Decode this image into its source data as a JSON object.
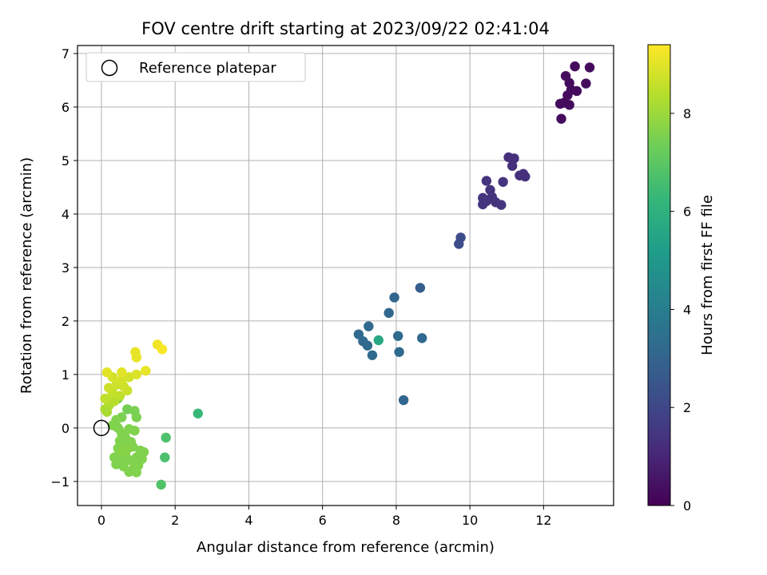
{
  "chart_data": {
    "type": "scatter",
    "title": "FOV centre drift starting at 2023/09/22 02:41:04",
    "xlabel": "Angular distance from reference (arcmin)",
    "ylabel": "Rotation from reference (arcmin)",
    "xlim": [
      -0.65,
      13.9
    ],
    "ylim": [
      -1.45,
      7.15
    ],
    "x_ticks": [
      0,
      2,
      4,
      6,
      8,
      10,
      12
    ],
    "y_ticks": [
      -1,
      0,
      1,
      2,
      3,
      4,
      5,
      6,
      7
    ],
    "grid": true,
    "legend": {
      "placement": "top-left",
      "entries": [
        "Reference platepar"
      ]
    },
    "reference_point": {
      "x": 0,
      "y": 0,
      "label": "Reference platepar"
    },
    "colorbar": {
      "label": "Hours from first FF file",
      "colormap": "viridis",
      "range": [
        0,
        9.4
      ],
      "ticks": [
        0,
        2,
        4,
        6,
        8
      ]
    },
    "points": [
      {
        "x": 12.85,
        "y": 6.76,
        "h": 0.3
      },
      {
        "x": 13.25,
        "y": 6.74,
        "h": 0.3
      },
      {
        "x": 12.6,
        "y": 6.58,
        "h": 0.3
      },
      {
        "x": 12.7,
        "y": 6.45,
        "h": 0.3
      },
      {
        "x": 13.15,
        "y": 6.44,
        "h": 0.3
      },
      {
        "x": 12.75,
        "y": 6.32,
        "h": 0.3
      },
      {
        "x": 12.9,
        "y": 6.3,
        "h": 0.3
      },
      {
        "x": 12.65,
        "y": 6.22,
        "h": 0.3
      },
      {
        "x": 12.45,
        "y": 6.06,
        "h": 0.3
      },
      {
        "x": 12.55,
        "y": 6.08,
        "h": 0.3
      },
      {
        "x": 12.7,
        "y": 6.04,
        "h": 0.3
      },
      {
        "x": 12.48,
        "y": 5.78,
        "h": 0.3
      },
      {
        "x": 11.05,
        "y": 5.06,
        "h": 1.3
      },
      {
        "x": 11.2,
        "y": 5.04,
        "h": 1.3
      },
      {
        "x": 11.15,
        "y": 4.9,
        "h": 1.3
      },
      {
        "x": 11.45,
        "y": 4.75,
        "h": 1.3
      },
      {
        "x": 11.5,
        "y": 4.7,
        "h": 1.3
      },
      {
        "x": 11.35,
        "y": 4.72,
        "h": 1.3
      },
      {
        "x": 10.45,
        "y": 4.62,
        "h": 1.4
      },
      {
        "x": 10.9,
        "y": 4.6,
        "h": 1.4
      },
      {
        "x": 10.55,
        "y": 4.45,
        "h": 1.4
      },
      {
        "x": 10.35,
        "y": 4.3,
        "h": 1.4
      },
      {
        "x": 10.6,
        "y": 4.32,
        "h": 1.4
      },
      {
        "x": 10.45,
        "y": 4.24,
        "h": 1.4
      },
      {
        "x": 10.7,
        "y": 4.22,
        "h": 1.4
      },
      {
        "x": 10.35,
        "y": 4.18,
        "h": 1.4
      },
      {
        "x": 10.85,
        "y": 4.17,
        "h": 1.4
      },
      {
        "x": 9.75,
        "y": 3.56,
        "h": 2.2
      },
      {
        "x": 9.7,
        "y": 3.44,
        "h": 2.2
      },
      {
        "x": 8.65,
        "y": 2.62,
        "h": 2.8
      },
      {
        "x": 7.95,
        "y": 2.44,
        "h": 3.1
      },
      {
        "x": 7.8,
        "y": 2.15,
        "h": 3.1
      },
      {
        "x": 7.25,
        "y": 1.9,
        "h": 3.2
      },
      {
        "x": 6.98,
        "y": 1.75,
        "h": 3.2
      },
      {
        "x": 8.05,
        "y": 1.72,
        "h": 3.2
      },
      {
        "x": 8.7,
        "y": 1.68,
        "h": 3.2
      },
      {
        "x": 7.1,
        "y": 1.62,
        "h": 3.2
      },
      {
        "x": 7.22,
        "y": 1.54,
        "h": 3.2
      },
      {
        "x": 8.08,
        "y": 1.42,
        "h": 3.2
      },
      {
        "x": 7.35,
        "y": 1.36,
        "h": 3.2
      },
      {
        "x": 8.2,
        "y": 0.52,
        "h": 3.1
      },
      {
        "x": 7.52,
        "y": 1.64,
        "h": 5.6
      },
      {
        "x": 2.62,
        "y": 0.27,
        "h": 6.3
      },
      {
        "x": 1.75,
        "y": -0.18,
        "h": 6.7
      },
      {
        "x": 1.72,
        "y": -0.55,
        "h": 6.7
      },
      {
        "x": 1.62,
        "y": -1.06,
        "h": 6.8
      },
      {
        "x": 0.45,
        "y": 0.55,
        "h": 7.3
      },
      {
        "x": 0.7,
        "y": 0.35,
        "h": 7.4
      },
      {
        "x": 0.9,
        "y": 0.32,
        "h": 7.5
      },
      {
        "x": 0.95,
        "y": 0.2,
        "h": 7.5
      },
      {
        "x": 0.55,
        "y": 0.2,
        "h": 7.5
      },
      {
        "x": 0.4,
        "y": 0.15,
        "h": 7.6
      },
      {
        "x": 0.3,
        "y": 0.05,
        "h": 7.6
      },
      {
        "x": 0.45,
        "y": 0.0,
        "h": 7.6
      },
      {
        "x": 0.75,
        "y": -0.02,
        "h": 7.6
      },
      {
        "x": 0.9,
        "y": -0.05,
        "h": 7.6
      },
      {
        "x": 0.55,
        "y": -0.1,
        "h": 7.6
      },
      {
        "x": 0.65,
        "y": -0.18,
        "h": 7.6
      },
      {
        "x": 0.5,
        "y": -0.24,
        "h": 7.6
      },
      {
        "x": 0.8,
        "y": -0.26,
        "h": 7.6
      },
      {
        "x": 0.6,
        "y": -0.3,
        "h": 7.6
      },
      {
        "x": 0.85,
        "y": -0.35,
        "h": 7.6
      },
      {
        "x": 0.45,
        "y": -0.38,
        "h": 7.6
      },
      {
        "x": 1.05,
        "y": -0.42,
        "h": 7.6
      },
      {
        "x": 1.15,
        "y": -0.45,
        "h": 7.6
      },
      {
        "x": 0.65,
        "y": -0.5,
        "h": 7.6
      },
      {
        "x": 0.35,
        "y": -0.55,
        "h": 7.6
      },
      {
        "x": 0.55,
        "y": -0.55,
        "h": 7.6
      },
      {
        "x": 0.95,
        "y": -0.55,
        "h": 7.6
      },
      {
        "x": 1.1,
        "y": -0.58,
        "h": 7.6
      },
      {
        "x": 0.75,
        "y": -0.6,
        "h": 7.6
      },
      {
        "x": 0.45,
        "y": -0.62,
        "h": 7.6
      },
      {
        "x": 0.9,
        "y": -0.65,
        "h": 7.6
      },
      {
        "x": 0.4,
        "y": -0.68,
        "h": 7.6
      },
      {
        "x": 1.0,
        "y": -0.7,
        "h": 7.6
      },
      {
        "x": 0.6,
        "y": -0.72,
        "h": 7.6
      },
      {
        "x": 0.85,
        "y": -0.78,
        "h": 7.6
      },
      {
        "x": 0.75,
        "y": -0.82,
        "h": 7.6
      },
      {
        "x": 0.95,
        "y": -0.83,
        "h": 7.6
      },
      {
        "x": 0.55,
        "y": -0.45,
        "h": 7.7
      },
      {
        "x": 0.7,
        "y": -0.4,
        "h": 7.7
      },
      {
        "x": 0.1,
        "y": 0.35,
        "h": 8.2
      },
      {
        "x": 0.2,
        "y": 0.42,
        "h": 8.3
      },
      {
        "x": 0.15,
        "y": 0.3,
        "h": 8.2
      },
      {
        "x": 0.25,
        "y": 0.55,
        "h": 8.4
      },
      {
        "x": 0.35,
        "y": 0.5,
        "h": 8.4
      },
      {
        "x": 0.1,
        "y": 0.55,
        "h": 8.5
      },
      {
        "x": 0.5,
        "y": 0.6,
        "h": 8.5
      },
      {
        "x": 0.3,
        "y": 0.65,
        "h": 8.6
      },
      {
        "x": 0.2,
        "y": 0.75,
        "h": 8.7
      },
      {
        "x": 0.4,
        "y": 0.8,
        "h": 8.7
      },
      {
        "x": 0.6,
        "y": 0.78,
        "h": 8.7
      },
      {
        "x": 0.7,
        "y": 0.7,
        "h": 8.7
      },
      {
        "x": 0.3,
        "y": 0.95,
        "h": 8.8
      },
      {
        "x": 0.55,
        "y": 0.9,
        "h": 8.8
      },
      {
        "x": 0.75,
        "y": 0.95,
        "h": 8.8
      },
      {
        "x": 0.95,
        "y": 1.0,
        "h": 8.9
      },
      {
        "x": 0.15,
        "y": 1.04,
        "h": 9.0
      },
      {
        "x": 0.55,
        "y": 1.04,
        "h": 9.0
      },
      {
        "x": 1.2,
        "y": 1.07,
        "h": 9.1
      },
      {
        "x": 0.92,
        "y": 1.42,
        "h": 9.1
      },
      {
        "x": 0.95,
        "y": 1.32,
        "h": 9.1
      },
      {
        "x": 1.52,
        "y": 1.56,
        "h": 9.2
      },
      {
        "x": 1.65,
        "y": 1.47,
        "h": 9.3
      }
    ]
  }
}
